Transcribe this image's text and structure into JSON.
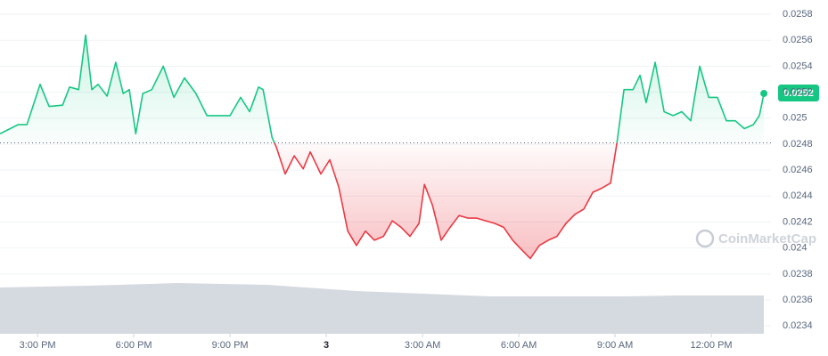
{
  "chart_data": {
    "type": "line",
    "x": [
      13.83,
      14.39,
      14.67,
      15.08,
      15.36,
      15.78,
      16.0,
      16.28,
      16.5,
      16.69,
      16.89,
      17.17,
      17.44,
      17.67,
      17.86,
      18.06,
      18.28,
      18.56,
      18.92,
      19.25,
      19.58,
      19.94,
      20.28,
      20.64,
      21.0,
      21.33,
      21.61,
      21.89,
      22.03,
      22.31,
      22.44,
      22.72,
      23.0,
      23.28,
      23.5,
      23.83,
      24.11,
      24.39,
      24.67,
      24.94,
      25.22,
      25.5,
      25.78,
      26.06,
      26.33,
      26.61,
      26.89,
      27.06,
      27.31,
      27.58,
      27.86,
      28.14,
      28.42,
      28.69,
      28.97,
      29.25,
      29.53,
      29.81,
      30.08,
      30.36,
      30.64,
      30.92,
      31.19,
      31.47,
      31.75,
      32.03,
      32.31,
      32.58,
      32.86,
      33.06,
      33.28,
      33.56,
      33.78,
      33.97,
      34.25,
      34.53,
      34.81,
      35.08,
      35.36,
      35.64,
      35.92,
      36.19,
      36.47,
      36.75,
      37.03,
      37.31,
      37.5,
      37.64
    ],
    "values": [
      0.02488,
      0.02495,
      0.02495,
      0.02526,
      0.02509,
      0.0251,
      0.02524,
      0.02522,
      0.02564,
      0.02522,
      0.02526,
      0.02517,
      0.02543,
      0.02519,
      0.02522,
      0.02488,
      0.02519,
      0.02522,
      0.0254,
      0.02516,
      0.02531,
      0.02519,
      0.02502,
      0.02502,
      0.02502,
      0.02516,
      0.02505,
      0.02524,
      0.02522,
      0.02485,
      0.02478,
      0.02457,
      0.02471,
      0.02461,
      0.02474,
      0.02457,
      0.02468,
      0.02447,
      0.02413,
      0.02402,
      0.02413,
      0.02406,
      0.02409,
      0.02421,
      0.02416,
      0.02409,
      0.02419,
      0.02449,
      0.02433,
      0.02406,
      0.02416,
      0.02425,
      0.02423,
      0.02423,
      0.02421,
      0.02419,
      0.02416,
      0.02406,
      0.02399,
      0.02392,
      0.02402,
      0.02406,
      0.02409,
      0.02419,
      0.02426,
      0.0243,
      0.02443,
      0.02446,
      0.0245,
      0.02481,
      0.02522,
      0.02522,
      0.02533,
      0.02512,
      0.02543,
      0.02505,
      0.02502,
      0.02505,
      0.02498,
      0.0254,
      0.02516,
      0.02516,
      0.02498,
      0.02498,
      0.02492,
      0.02495,
      0.02502,
      0.02519
    ],
    "baseline": 0.02481,
    "color_up": "#16c784",
    "color_down": "#ea3943",
    "xlim": [
      13.83,
      37.86
    ],
    "ylim": [
      0.02334,
      0.02591
    ],
    "xticks": [
      {
        "value": 15,
        "label": "3:00 PM"
      },
      {
        "value": 18,
        "label": "6:00 PM"
      },
      {
        "value": 21,
        "label": "9:00 PM"
      },
      {
        "value": 24,
        "label": "3"
      },
      {
        "value": 27,
        "label": "3:00 AM"
      },
      {
        "value": 30,
        "label": "6:00 AM"
      },
      {
        "value": 33,
        "label": "9:00 AM"
      },
      {
        "value": 36,
        "label": "12:00 PM"
      }
    ],
    "yticks": [
      0.0234,
      0.0236,
      0.0238,
      0.024,
      0.0242,
      0.0244,
      0.0246,
      0.0248,
      0.025,
      0.0252,
      0.0254,
      0.0256,
      0.0258
    ],
    "grid": true,
    "last_price_label": "0.0252",
    "watermark": "CoinMarketCap"
  }
}
